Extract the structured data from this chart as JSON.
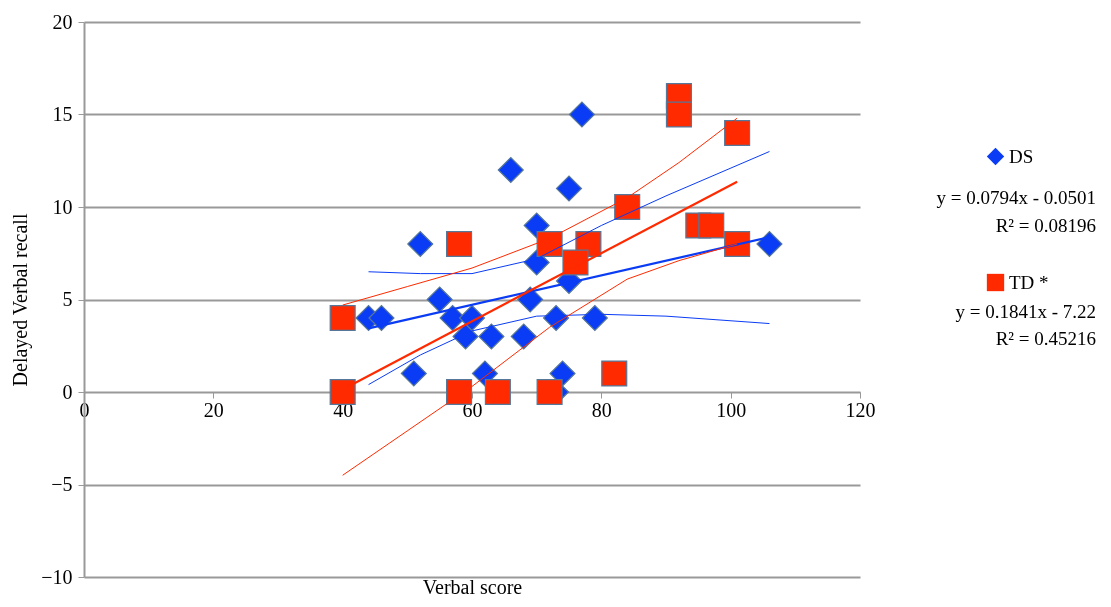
{
  "chart_data": {
    "type": "scatter",
    "xlabel": "Verbal score",
    "ylabel": "Delayed Verbal recall",
    "xlim": [
      0,
      120
    ],
    "ylim": [
      -10,
      20
    ],
    "xticks": [
      0,
      20,
      40,
      60,
      80,
      100,
      120
    ],
    "yticks": [
      -10,
      -5,
      0,
      5,
      10,
      15,
      20
    ],
    "grid": "y",
    "legend": "right",
    "series": [
      {
        "name": "DS",
        "type": "scatter",
        "marker": "diamond",
        "color": "#0a3cf5",
        "x": [
          77,
          66,
          75,
          52,
          70,
          70,
          75,
          55,
          69,
          44,
          46,
          57,
          60,
          73,
          79,
          59,
          63,
          68,
          51,
          62,
          74,
          73,
          106
        ],
        "values": [
          15,
          12,
          11,
          8,
          9,
          7,
          6,
          5,
          5,
          4,
          4,
          4,
          4,
          4,
          4,
          3,
          3,
          3,
          1,
          1,
          1,
          0,
          8
        ]
      },
      {
        "name": "TD *",
        "type": "scatter",
        "marker": "square",
        "color": "#ff2a00",
        "x": [
          40,
          40,
          58,
          58,
          64,
          72,
          72,
          78,
          76,
          84,
          92,
          92,
          101,
          95,
          97,
          101,
          82
        ],
        "values": [
          4,
          0,
          8,
          0,
          0,
          0,
          8,
          8,
          7,
          10,
          16,
          15,
          14,
          9,
          9,
          8,
          1
        ]
      },
      {
        "type": "line",
        "marker": "none",
        "color": "#0a3cf5",
        "x": [
          44,
          106
        ],
        "values": [
          3.44,
          8.37
        ]
      },
      {
        "type": "line",
        "marker": "none",
        "color": "#ff2a00",
        "x": [
          40,
          101
        ],
        "values": [
          0.14,
          11.37
        ]
      },
      {
        "type": "line",
        "marker": "none",
        "color": "#0a3cf5",
        "x": [
          44,
          52,
          60,
          70,
          80,
          90,
          106
        ],
        "values": [
          6.5,
          6.4,
          6.4,
          7.2,
          9,
          10.6,
          13
        ]
      },
      {
        "type": "line",
        "marker": "none",
        "color": "#0a3cf5",
        "x": [
          44,
          52,
          60,
          70,
          80,
          90,
          106
        ],
        "values": [
          0.4,
          2.0,
          3.3,
          4.1,
          4.2,
          4.1,
          3.7
        ]
      },
      {
        "type": "line",
        "marker": "none",
        "color": "#ff2a00",
        "x": [
          40,
          50,
          60,
          72,
          84,
          92,
          101
        ],
        "values": [
          4.7,
          5.7,
          6.7,
          8.3,
          10.5,
          12.4,
          14.8
        ]
      },
      {
        "type": "line",
        "marker": "none",
        "color": "#ff2a00",
        "x": [
          40,
          50,
          60,
          72,
          84,
          92,
          101
        ],
        "values": [
          -4.5,
          -2.1,
          0.3,
          3.5,
          6.1,
          7.1,
          8
        ]
      }
    ],
    "annotations": [
      "y = 0.0794x - 0.0501",
      "R² = 0.08196",
      "y = 0.1841x - 7.22",
      "R² = 0.45216"
    ]
  }
}
